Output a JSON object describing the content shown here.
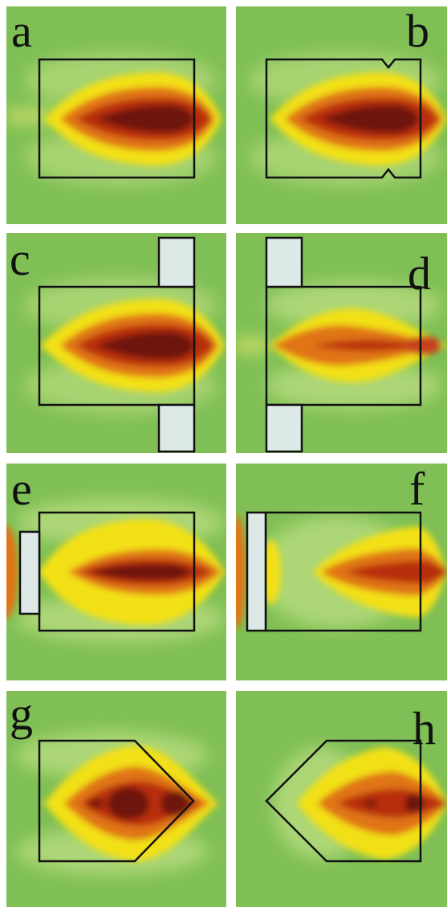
{
  "figure": {
    "panels": [
      {
        "label": "a",
        "shape": "rectangle"
      },
      {
        "label": "b",
        "shape": "rectangle-with-notches"
      },
      {
        "label": "c",
        "shape": "rectangle-with-plates-behind"
      },
      {
        "label": "d",
        "shape": "rectangle-with-plates-in-front"
      },
      {
        "label": "e",
        "shape": "rectangle-with-short-plate-in-front"
      },
      {
        "label": "f",
        "shape": "rectangle-with-attached-plate-in-front"
      },
      {
        "label": "g",
        "shape": "pointed-body-facing-downstream"
      },
      {
        "label": "h",
        "shape": "pointed-body-facing-upstream"
      }
    ],
    "colors": {
      "background_green": "#7fbf55",
      "light_green": "#b9dc7e",
      "yellow": "#f2e018",
      "orange": "#e07418",
      "red": "#b82e10",
      "dark_red": "#6e160d",
      "obstacle": "#dde9e6",
      "outline": "#111111"
    }
  }
}
